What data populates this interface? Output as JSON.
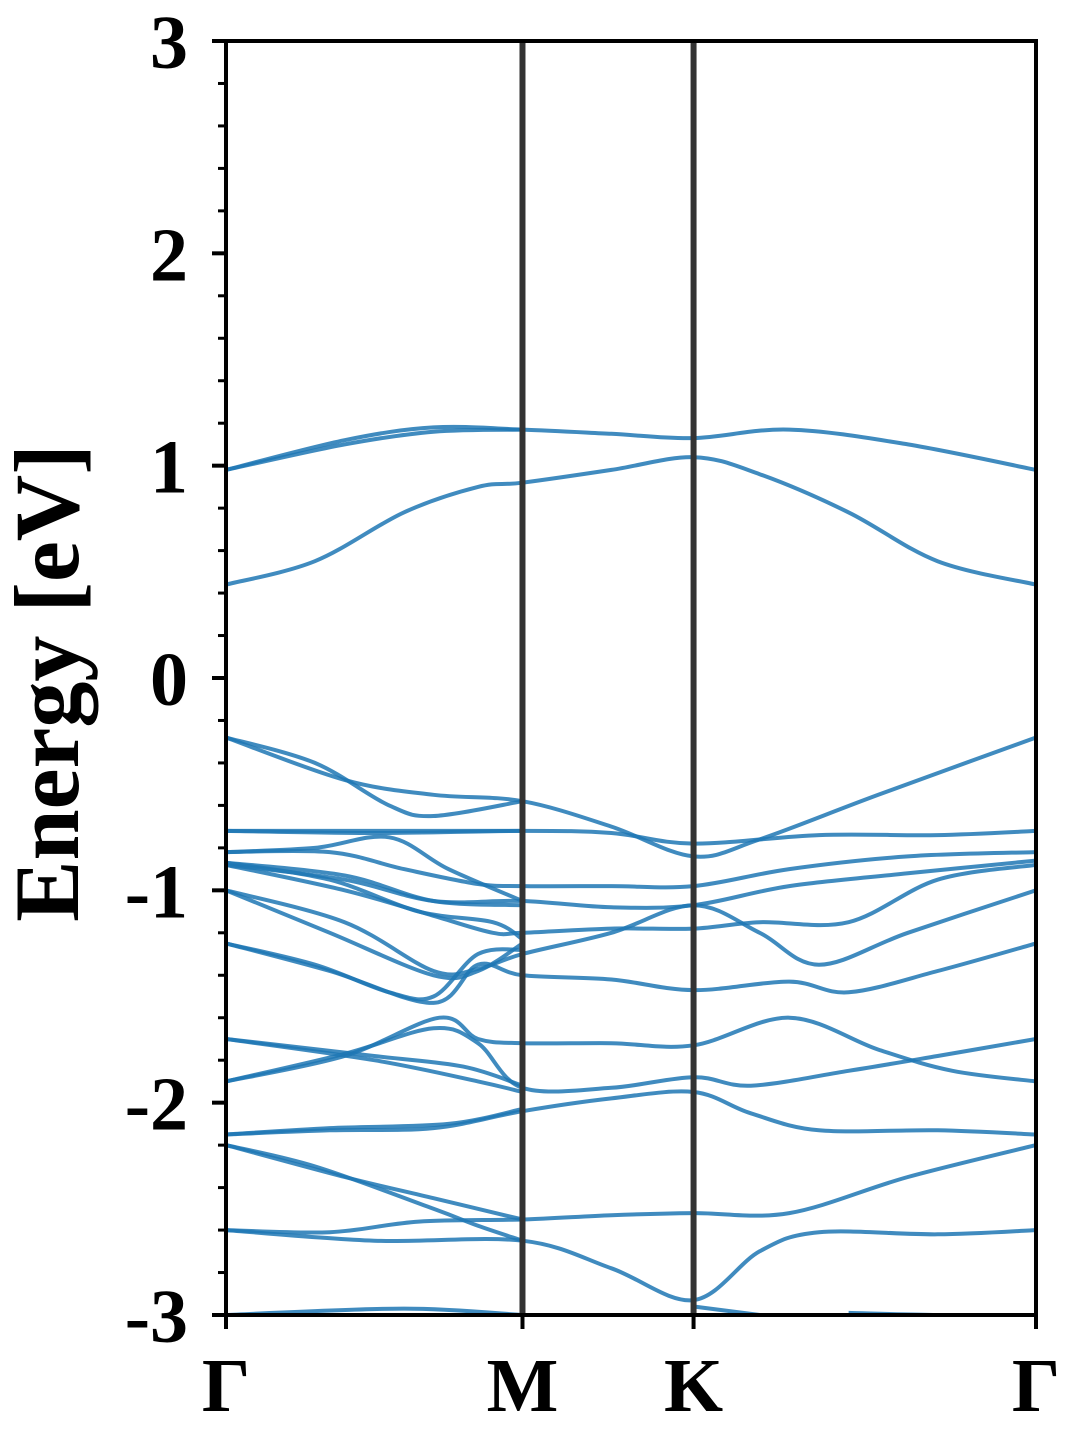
{
  "chart_data": {
    "type": "line",
    "title": "",
    "xlabel": "",
    "ylabel": "Energy [eV]",
    "ylim": [
      -3,
      3
    ],
    "y_ticks": [
      "3",
      "2",
      "1",
      "0",
      "-1",
      "-2",
      "-3"
    ],
    "k_points": [
      {
        "label": "Γ",
        "position": 0.0
      },
      {
        "label": "M",
        "position": 1.0
      },
      {
        "label": "K",
        "position": 1.577
      },
      {
        "label": "Γ",
        "position": 2.732
      }
    ],
    "grid": false,
    "legend": "none",
    "line_color": "#1f77b4",
    "vline_color": "#333333",
    "bands": [
      {
        "values": [
          [
            0.0,
            -3.0
          ],
          [
            0.6,
            -2.97
          ],
          [
            1.0,
            -3.0
          ]
        ]
      },
      {
        "values": [
          [
            1.577,
            -2.96
          ],
          [
            1.8,
            -3.0
          ]
        ]
      },
      {
        "values": [
          [
            2.1,
            -2.99
          ],
          [
            2.4,
            -3.0
          ],
          [
            2.732,
            -3.0
          ]
        ]
      },
      {
        "values": [
          [
            0.0,
            -2.6
          ],
          [
            0.5,
            -2.65
          ],
          [
            1.0,
            -2.65
          ],
          [
            1.3,
            -2.78
          ],
          [
            1.577,
            -2.93
          ],
          [
            1.8,
            -2.7
          ],
          [
            2.0,
            -2.61
          ],
          [
            2.4,
            -2.62
          ],
          [
            2.732,
            -2.6
          ]
        ]
      },
      {
        "values": [
          [
            0.0,
            -2.6
          ],
          [
            0.35,
            -2.61
          ],
          [
            0.65,
            -2.56
          ],
          [
            1.0,
            -2.55
          ],
          [
            1.3,
            -2.53
          ],
          [
            1.577,
            -2.52
          ],
          [
            1.9,
            -2.52
          ],
          [
            2.3,
            -2.35
          ],
          [
            2.732,
            -2.2
          ]
        ]
      },
      {
        "values": [
          [
            0.0,
            -2.2
          ],
          [
            0.3,
            -2.3
          ],
          [
            0.7,
            -2.5
          ],
          [
            0.85,
            -2.58
          ],
          [
            1.0,
            -2.65
          ]
        ]
      },
      {
        "values": [
          [
            0.0,
            -2.2
          ],
          [
            0.4,
            -2.35
          ],
          [
            0.7,
            -2.45
          ],
          [
            1.0,
            -2.55
          ]
        ]
      },
      {
        "values": [
          [
            0.0,
            -2.15
          ],
          [
            0.35,
            -2.13
          ],
          [
            0.7,
            -2.12
          ],
          [
            1.0,
            -2.04
          ],
          [
            1.3,
            -1.98
          ],
          [
            1.577,
            -1.95
          ],
          [
            1.77,
            -2.05
          ],
          [
            2.0,
            -2.13
          ],
          [
            2.4,
            -2.13
          ],
          [
            2.732,
            -2.15
          ]
        ]
      },
      {
        "values": [
          [
            0.0,
            -2.15
          ],
          [
            0.35,
            -2.12
          ],
          [
            0.75,
            -2.1
          ],
          [
            1.0,
            -2.03
          ]
        ]
      },
      {
        "values": [
          [
            0.0,
            -1.9
          ],
          [
            0.4,
            -1.77
          ],
          [
            0.7,
            -1.65
          ],
          [
            0.85,
            -1.72
          ],
          [
            1.0,
            -1.93
          ],
          [
            1.3,
            -1.93
          ],
          [
            1.577,
            -1.88
          ],
          [
            1.77,
            -1.92
          ],
          [
            2.1,
            -1.85
          ],
          [
            2.4,
            -1.78
          ],
          [
            2.732,
            -1.7
          ]
        ]
      },
      {
        "values": [
          [
            0.0,
            -1.9
          ],
          [
            0.4,
            -1.78
          ],
          [
            0.72,
            -1.6
          ],
          [
            0.85,
            -1.7
          ],
          [
            1.0,
            -1.72
          ],
          [
            1.3,
            -1.72
          ],
          [
            1.577,
            -1.73
          ],
          [
            1.9,
            -1.6
          ],
          [
            2.2,
            -1.75
          ],
          [
            2.45,
            -1.85
          ],
          [
            2.732,
            -1.9
          ]
        ]
      },
      {
        "values": [
          [
            0.0,
            -1.7
          ],
          [
            0.5,
            -1.8
          ],
          [
            0.85,
            -1.9
          ],
          [
            1.0,
            -1.95
          ]
        ]
      },
      {
        "values": [
          [
            0.0,
            -1.7
          ],
          [
            0.5,
            -1.78
          ],
          [
            0.8,
            -1.83
          ],
          [
            1.0,
            -1.92
          ]
        ]
      },
      {
        "values": [
          [
            0.0,
            -1.25
          ],
          [
            0.3,
            -1.35
          ],
          [
            0.55,
            -1.48
          ],
          [
            0.7,
            -1.5
          ],
          [
            0.85,
            -1.3
          ],
          [
            1.0,
            -1.28
          ]
        ]
      },
      {
        "values": [
          [
            0.0,
            -1.25
          ],
          [
            0.35,
            -1.38
          ],
          [
            0.7,
            -1.53
          ],
          [
            0.85,
            -1.35
          ],
          [
            1.0,
            -1.4
          ],
          [
            1.3,
            -1.42
          ],
          [
            1.577,
            -1.47
          ],
          [
            1.9,
            -1.43
          ],
          [
            2.1,
            -1.48
          ],
          [
            2.4,
            -1.38
          ],
          [
            2.732,
            -1.25
          ]
        ]
      },
      {
        "values": [
          [
            0.0,
            -1.0
          ],
          [
            0.4,
            -1.15
          ],
          [
            0.7,
            -1.38
          ],
          [
            0.85,
            -1.37
          ],
          [
            1.0,
            -1.3
          ],
          [
            1.3,
            -1.2
          ],
          [
            1.577,
            -1.07
          ],
          [
            1.8,
            -1.2
          ],
          [
            2.0,
            -1.35
          ],
          [
            2.3,
            -1.2
          ],
          [
            2.732,
            -1.0
          ]
        ]
      },
      {
        "values": [
          [
            0.0,
            -1.0
          ],
          [
            0.35,
            -1.2
          ],
          [
            0.7,
            -1.4
          ],
          [
            0.85,
            -1.38
          ],
          [
            1.0,
            -1.25
          ]
        ]
      },
      {
        "values": [
          [
            0.0,
            -0.88
          ],
          [
            0.4,
            -1.0
          ],
          [
            0.7,
            -1.12
          ],
          [
            0.9,
            -1.2
          ],
          [
            1.0,
            -1.2
          ],
          [
            1.3,
            -1.18
          ],
          [
            1.577,
            -1.18
          ],
          [
            1.8,
            -1.15
          ],
          [
            2.1,
            -1.15
          ],
          [
            2.4,
            -0.95
          ],
          [
            2.732,
            -0.88
          ]
        ]
      },
      {
        "values": [
          [
            0.0,
            -0.88
          ],
          [
            0.4,
            -0.95
          ],
          [
            0.7,
            -1.05
          ],
          [
            1.0,
            -1.05
          ],
          [
            1.3,
            -1.08
          ],
          [
            1.577,
            -1.07
          ],
          [
            1.9,
            -0.98
          ],
          [
            2.3,
            -0.92
          ],
          [
            2.732,
            -0.86
          ]
        ]
      },
      {
        "values": [
          [
            0.0,
            -0.87
          ],
          [
            0.35,
            -0.95
          ],
          [
            0.65,
            -1.1
          ],
          [
            0.9,
            -1.15
          ],
          [
            1.0,
            -1.23
          ]
        ]
      },
      {
        "values": [
          [
            0.0,
            -0.87
          ],
          [
            0.4,
            -0.93
          ],
          [
            0.7,
            -1.05
          ],
          [
            1.0,
            -1.07
          ]
        ]
      },
      {
        "values": [
          [
            0.0,
            -0.82
          ],
          [
            0.35,
            -0.82
          ],
          [
            0.6,
            -0.9
          ],
          [
            0.85,
            -0.97
          ],
          [
            1.0,
            -0.98
          ],
          [
            1.3,
            -0.98
          ],
          [
            1.577,
            -0.98
          ],
          [
            1.9,
            -0.9
          ],
          [
            2.3,
            -0.84
          ],
          [
            2.732,
            -0.82
          ]
        ]
      },
      {
        "values": [
          [
            0.0,
            -0.82
          ],
          [
            0.3,
            -0.8
          ],
          [
            0.55,
            -0.75
          ],
          [
            0.75,
            -0.9
          ],
          [
            1.0,
            -1.05
          ]
        ]
      },
      {
        "values": [
          [
            0.0,
            -0.72
          ],
          [
            0.5,
            -0.73
          ],
          [
            1.0,
            -0.72
          ],
          [
            1.3,
            -0.73
          ],
          [
            1.577,
            -0.78
          ],
          [
            2.0,
            -0.74
          ],
          [
            2.4,
            -0.74
          ],
          [
            2.732,
            -0.72
          ]
        ]
      },
      {
        "values": [
          [
            0.0,
            -0.72
          ],
          [
            0.5,
            -0.72
          ],
          [
            1.0,
            -0.72
          ]
        ]
      },
      {
        "values": [
          [
            0.0,
            -0.28
          ],
          [
            0.4,
            -0.48
          ],
          [
            0.7,
            -0.55
          ],
          [
            1.0,
            -0.58
          ],
          [
            1.3,
            -0.7
          ],
          [
            1.577,
            -0.84
          ],
          [
            1.8,
            -0.76
          ],
          [
            2.2,
            -0.55
          ],
          [
            2.732,
            -0.28
          ]
        ]
      },
      {
        "values": [
          [
            0.0,
            -0.28
          ],
          [
            0.3,
            -0.4
          ],
          [
            0.55,
            -0.6
          ],
          [
            0.7,
            -0.65
          ],
          [
            1.0,
            -0.58
          ]
        ]
      },
      {
        "values": [
          [
            0.0,
            0.44
          ],
          [
            0.3,
            0.55
          ],
          [
            0.6,
            0.78
          ],
          [
            0.85,
            0.9
          ],
          [
            1.0,
            0.92
          ],
          [
            1.3,
            0.98
          ],
          [
            1.577,
            1.04
          ],
          [
            1.8,
            0.96
          ],
          [
            2.1,
            0.78
          ],
          [
            2.4,
            0.55
          ],
          [
            2.732,
            0.44
          ]
        ]
      },
      {
        "values": [
          [
            0.0,
            0.98
          ],
          [
            0.4,
            1.12
          ],
          [
            0.7,
            1.18
          ],
          [
            1.0,
            1.17
          ],
          [
            1.3,
            1.15
          ],
          [
            1.577,
            1.13
          ],
          [
            1.9,
            1.17
          ],
          [
            2.3,
            1.1
          ],
          [
            2.732,
            0.98
          ]
        ]
      },
      {
        "values": [
          [
            0.0,
            0.98
          ],
          [
            0.4,
            1.1
          ],
          [
            0.7,
            1.16
          ],
          [
            1.0,
            1.17
          ]
        ]
      }
    ]
  }
}
